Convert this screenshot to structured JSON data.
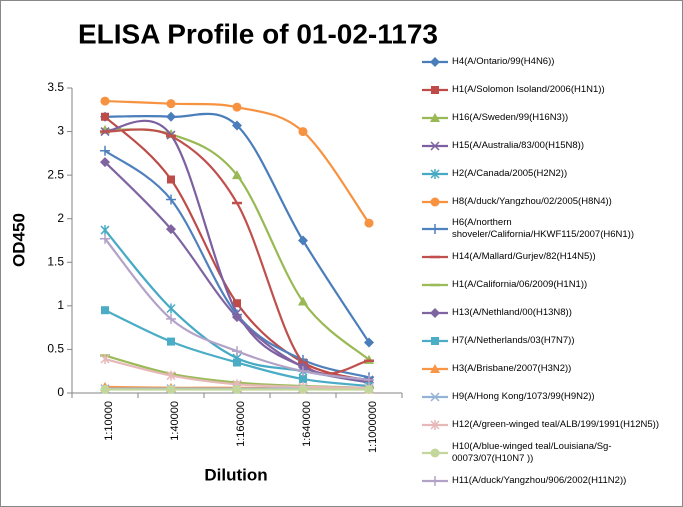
{
  "chart_data": {
    "type": "line",
    "title": "ELISA Profile of 01-02-1173",
    "x_label": "Dilution",
    "y_label": "OD450",
    "categories": [
      "1:10000",
      "1:40000",
      "1:160000",
      "1:640000",
      "1:1000000"
    ],
    "ylim": [
      0,
      3.5
    ],
    "yticks": [
      0,
      0.5,
      1,
      1.5,
      2,
      2.5,
      3,
      3.5
    ],
    "grid": false,
    "smooth": true,
    "legend": "right",
    "series": [
      {
        "name": "H4(A/Ontario/99(H4N6))",
        "color": "#4a7ebb",
        "marker": "diamond",
        "values": [
          3.17,
          3.17,
          3.07,
          1.75,
          0.58
        ]
      },
      {
        "name": "H1(A/Solomon Isoland/2006(H1N1))",
        "color": "#be4b48",
        "marker": "square",
        "values": [
          3.17,
          2.45,
          1.03,
          0.35,
          0.14
        ]
      },
      {
        "name": "H16(A/Sweden/99(H16N3))",
        "color": "#98b954",
        "marker": "triangle",
        "values": [
          3.02,
          2.97,
          2.5,
          1.05,
          0.38
        ]
      },
      {
        "name": "H15(A/Australia/83/00(H15N8))",
        "color": "#7d60a0",
        "marker": "x",
        "values": [
          3.0,
          2.96,
          0.92,
          0.3,
          0.15
        ]
      },
      {
        "name": "H2(A/Canada/2005(H2N2))",
        "color": "#46aac5",
        "marker": "star",
        "values": [
          1.87,
          0.97,
          0.4,
          0.25,
          0.12
        ]
      },
      {
        "name": "H8(A/duck/Yangzhou/02/2005(H8N4))",
        "color": "#f69240",
        "marker": "circle",
        "values": [
          3.35,
          3.32,
          3.28,
          3.0,
          1.95
        ]
      },
      {
        "name": "H6(A/northern shoveler/California/HKWF115/2007(H6N1))",
        "color": "#4f81bd",
        "marker": "plus",
        "values": [
          2.78,
          2.22,
          0.9,
          0.38,
          0.18
        ]
      },
      {
        "name": "H14(A/Mallard/Gurjev/82(H14N5))",
        "color": "#c0504d",
        "marker": "dash",
        "values": [
          3.0,
          2.95,
          2.18,
          0.35,
          0.37
        ]
      },
      {
        "name": "H1(A/California/06/2009(H1N1))",
        "color": "#9bbb59",
        "marker": "dash",
        "values": [
          0.43,
          0.22,
          0.12,
          0.08,
          0.06
        ]
      },
      {
        "name": "H13(A/Nethland/00(H13N8))",
        "color": "#8064a2",
        "marker": "diamond",
        "values": [
          2.65,
          1.88,
          0.87,
          0.3,
          0.12
        ]
      },
      {
        "name": "H7(A/Netherlands/03(H7N7))",
        "color": "#4bacc6",
        "marker": "square",
        "values": [
          0.95,
          0.59,
          0.35,
          0.16,
          0.08
        ]
      },
      {
        "name": "H3(A/Brisbane/2007(H3N2))",
        "color": "#f79646",
        "marker": "triangle",
        "values": [
          0.07,
          0.06,
          0.06,
          0.05,
          0.04
        ]
      },
      {
        "name": "H9(A/Hong Kong/1073/99(H9N2))",
        "color": "#95b3d7",
        "marker": "x",
        "values": [
          0.05,
          0.05,
          0.05,
          0.05,
          0.05
        ]
      },
      {
        "name": "H12(A/green-winged teal/ALB/199/1991(H12N5))",
        "color": "#e6b9b8",
        "marker": "star",
        "values": [
          0.39,
          0.2,
          0.1,
          0.07,
          0.06
        ]
      },
      {
        "name": "H10(A/blue-winged teal/Louisiana/Sg-00073/07(H10N7 ))",
        "color": "#c3d69b",
        "marker": "circle",
        "values": [
          0.04,
          0.04,
          0.04,
          0.04,
          0.04
        ]
      },
      {
        "name": "H11(A/duck/Yangzhou/906/2002(H11N2))",
        "color": "#b3a2c7",
        "marker": "plus",
        "values": [
          1.77,
          0.85,
          0.48,
          0.25,
          0.15
        ]
      }
    ]
  }
}
